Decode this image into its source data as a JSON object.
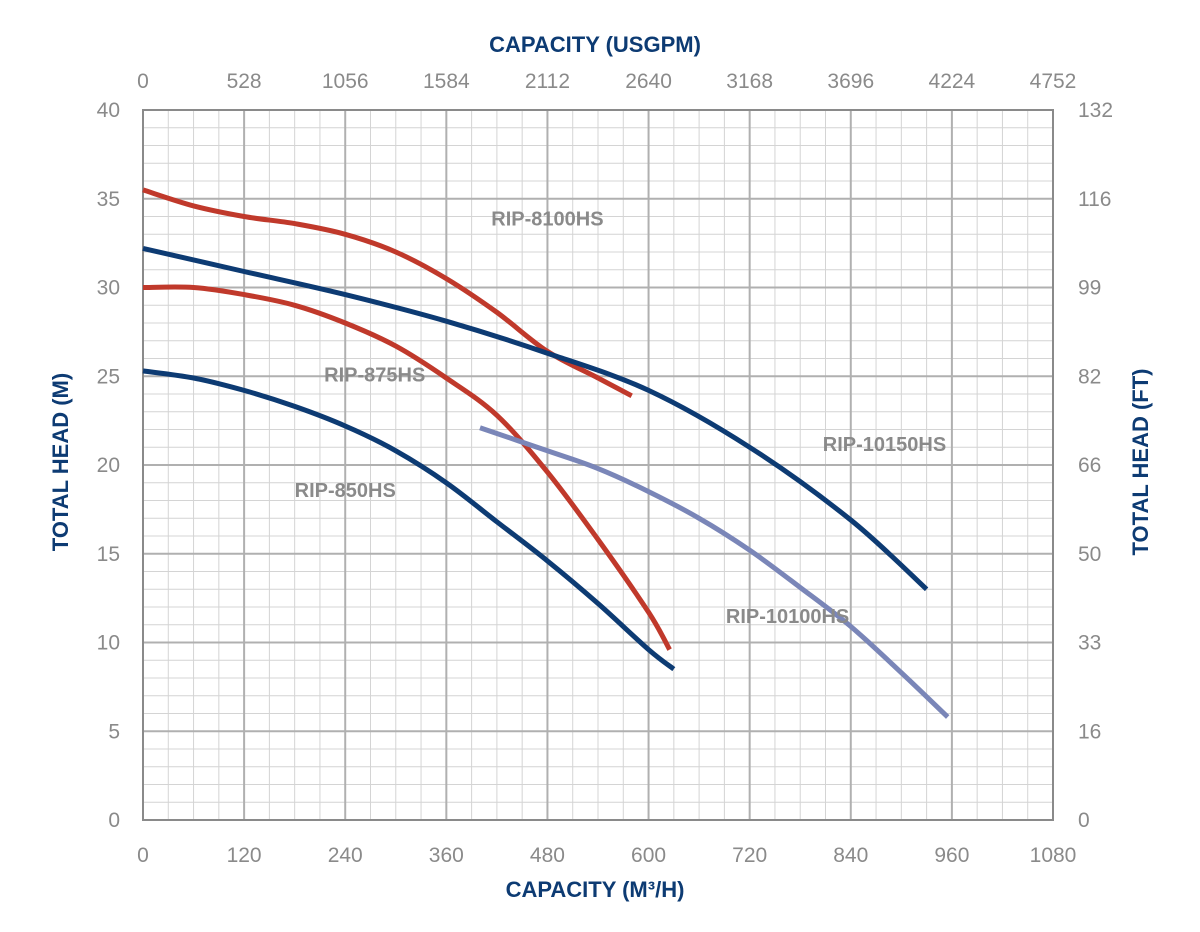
{
  "chart_data": {
    "type": "line",
    "x_axis_bottom": {
      "label": "CAPACITY (M³/H)",
      "range": [
        0,
        1080
      ],
      "ticks": [
        "0",
        "120",
        "240",
        "360",
        "480",
        "600",
        "720",
        "840",
        "960",
        "1080"
      ],
      "tick_values": [
        0,
        120,
        240,
        360,
        480,
        600,
        720,
        840,
        960,
        1080
      ],
      "minor_step": 30
    },
    "x_axis_top": {
      "label": "CAPACITY (USGPM)",
      "ticks": [
        "0",
        "528",
        "1056",
        "1584",
        "2112",
        "2640",
        "3168",
        "3696",
        "4224",
        "4752"
      ]
    },
    "y_axis_left": {
      "label": "TOTAL HEAD (M)",
      "range": [
        0,
        40
      ],
      "ticks": [
        "0",
        "5",
        "10",
        "15",
        "20",
        "25",
        "30",
        "35",
        "40"
      ],
      "tick_values": [
        0,
        5,
        10,
        15,
        20,
        25,
        30,
        35,
        40
      ],
      "minor_step": 1
    },
    "y_axis_right": {
      "label": "TOTAL HEAD (FT)",
      "ticks": [
        "0",
        "16",
        "33",
        "50",
        "66",
        "82",
        "99",
        "116",
        "132"
      ]
    },
    "grid": true,
    "series": [
      {
        "name": "RIP-8100HS",
        "color": "#c0392b",
        "points": [
          [
            0,
            35.5
          ],
          [
            60,
            34.6
          ],
          [
            120,
            34.0
          ],
          [
            180,
            33.6
          ],
          [
            240,
            33.0
          ],
          [
            300,
            32.0
          ],
          [
            360,
            30.5
          ],
          [
            420,
            28.6
          ],
          [
            480,
            26.4
          ],
          [
            540,
            24.9
          ],
          [
            580,
            23.9
          ]
        ]
      },
      {
        "name": "RIP-875HS",
        "color": "#c0392b",
        "points": [
          [
            0,
            30.0
          ],
          [
            60,
            30.0
          ],
          [
            120,
            29.6
          ],
          [
            180,
            29.0
          ],
          [
            240,
            28.0
          ],
          [
            300,
            26.7
          ],
          [
            360,
            24.9
          ],
          [
            420,
            22.8
          ],
          [
            480,
            19.6
          ],
          [
            540,
            15.8
          ],
          [
            600,
            11.7
          ],
          [
            625,
            9.6
          ]
        ]
      },
      {
        "name": "RIP-850HS",
        "color": "#0d3b73",
        "points": [
          [
            0,
            25.3
          ],
          [
            60,
            24.9
          ],
          [
            120,
            24.2
          ],
          [
            180,
            23.3
          ],
          [
            240,
            22.2
          ],
          [
            300,
            20.8
          ],
          [
            360,
            19.0
          ],
          [
            420,
            16.8
          ],
          [
            480,
            14.6
          ],
          [
            540,
            12.2
          ],
          [
            600,
            9.6
          ],
          [
            630,
            8.5
          ]
        ]
      },
      {
        "name": "RIP-10150HS",
        "color": "#0d3b73",
        "points": [
          [
            0,
            32.2
          ],
          [
            120,
            30.9
          ],
          [
            240,
            29.6
          ],
          [
            360,
            28.1
          ],
          [
            480,
            26.3
          ],
          [
            600,
            24.2
          ],
          [
            720,
            21.0
          ],
          [
            840,
            16.9
          ],
          [
            930,
            13.0
          ]
        ]
      },
      {
        "name": "RIP-10100HS",
        "color": "#7a86b8",
        "points": [
          [
            400,
            22.1
          ],
          [
            480,
            20.8
          ],
          [
            540,
            19.8
          ],
          [
            600,
            18.5
          ],
          [
            660,
            17.0
          ],
          [
            720,
            15.2
          ],
          [
            780,
            13.1
          ],
          [
            840,
            10.9
          ],
          [
            900,
            8.3
          ],
          [
            955,
            5.8
          ]
        ]
      }
    ],
    "labels": [
      {
        "text": "RIP-8100HS",
        "x": 480,
        "y": 33.5
      },
      {
        "text": "RIP-875HS",
        "x": 275,
        "y": 24.7
      },
      {
        "text": "RIP-850HS",
        "x": 240,
        "y": 18.2
      },
      {
        "text": "RIP-10150HS",
        "x": 880,
        "y": 20.8
      },
      {
        "text": "RIP-10100HS",
        "x": 765,
        "y": 11.1
      }
    ]
  }
}
